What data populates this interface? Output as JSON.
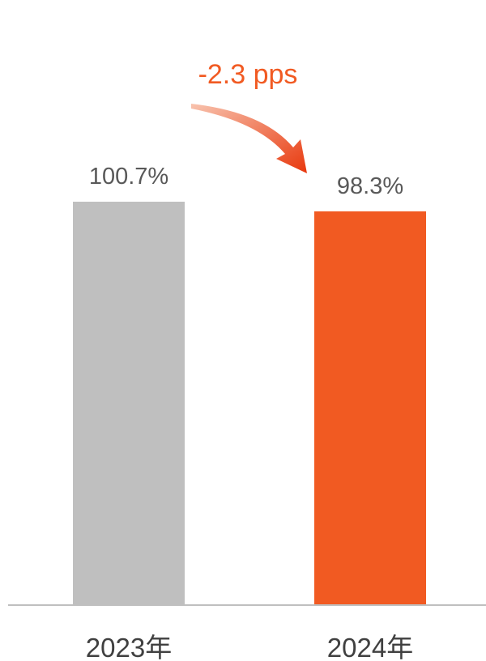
{
  "chart_data": {
    "type": "bar",
    "categories": [
      "2023年",
      "2024年"
    ],
    "values": [
      100.7,
      98.3
    ],
    "value_labels": [
      "100.7%",
      "98.3%"
    ],
    "colors": [
      "#BFBFBF",
      "#F15A22"
    ],
    "ylim": [
      0,
      100.7
    ],
    "grid": false,
    "legend": "none",
    "annotation": {
      "text": "-2.3 pps",
      "color": "#F15A22"
    }
  }
}
